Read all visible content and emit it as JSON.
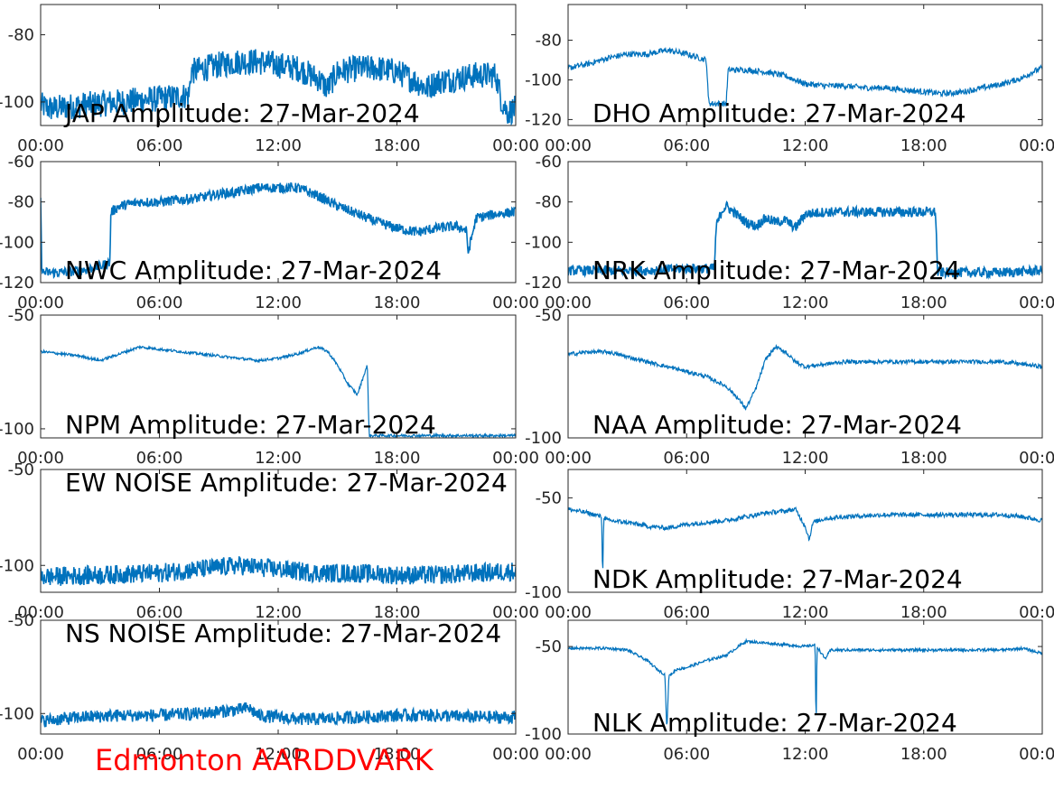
{
  "footer_label": "Edmonton AARDDVARK",
  "colors": {
    "series": "#0072bd",
    "footer": "#ff0000",
    "axis": "#262626"
  },
  "chart_data": [
    {
      "type": "line",
      "title": "JAP Amplitude: 27-Mar-2024",
      "xlabel": "",
      "ylabel": "",
      "x_ticks": [
        "00:00",
        "06:00",
        "12:00",
        "18:00",
        "00:00"
      ],
      "y_ticks": [
        -80,
        -100
      ],
      "ylim": [
        -107,
        -71
      ],
      "noise": 4,
      "series": [
        {
          "x": [
            0,
            0.5,
            2,
            4,
            6,
            7.5,
            7.6,
            9,
            10,
            11,
            12,
            13,
            14,
            14.5,
            15,
            16,
            17,
            18,
            19,
            19.5,
            20,
            21,
            22,
            22.5,
            23,
            23.3,
            23.6,
            24
          ],
          "y": [
            -101,
            -102,
            -101,
            -100,
            -99,
            -98,
            -91,
            -89,
            -88,
            -88,
            -89,
            -90,
            -93,
            -96,
            -91,
            -90,
            -90,
            -91,
            -94,
            -96,
            -94,
            -93,
            -92,
            -92,
            -92,
            -100,
            -103,
            -102
          ]
        }
      ]
    },
    {
      "type": "line",
      "title": "DHO Amplitude: 27-Mar-2024",
      "xlabel": "",
      "ylabel": "",
      "x_ticks": [
        "00:00",
        "06:00",
        "12:00",
        "18:00",
        "00:00"
      ],
      "y_ticks": [
        -80,
        -100,
        -120
      ],
      "ylim": [
        -123,
        -62
      ],
      "noise": 1.5,
      "series": [
        {
          "x": [
            0,
            1,
            2,
            3,
            4,
            5,
            6,
            7,
            7.1,
            7.2,
            8,
            8.1,
            9,
            10,
            11,
            12,
            13,
            14,
            15,
            16,
            17,
            18,
            19,
            20,
            21,
            22,
            23,
            23.5,
            24
          ],
          "y": [
            -94,
            -92,
            -89,
            -87,
            -87,
            -85,
            -87,
            -90,
            -110,
            -112,
            -112,
            -95,
            -95,
            -96,
            -98,
            -102,
            -103,
            -103,
            -104,
            -104,
            -105,
            -106,
            -107,
            -106,
            -104,
            -102,
            -99,
            -96,
            -94
          ]
        }
      ]
    },
    {
      "type": "line",
      "title": "NWC Amplitude: 27-Mar-2024",
      "xlabel": "",
      "ylabel": "",
      "x_ticks": [
        "00:00",
        "06:00",
        "12:00",
        "18:00",
        "00:00"
      ],
      "y_ticks": [
        -60,
        -80,
        -100,
        -120
      ],
      "ylim": [
        -120,
        -60
      ],
      "noise": 2.5,
      "series": [
        {
          "x": [
            0,
            0.05,
            0.1,
            1,
            2,
            3,
            3.5,
            3.55,
            4,
            5,
            6,
            7,
            8,
            9,
            10,
            11,
            12,
            13,
            14,
            15,
            16,
            17,
            18,
            19,
            20,
            21,
            21.5,
            21.6,
            22,
            23,
            24
          ],
          "y": [
            -80,
            -110,
            -115,
            -115,
            -114,
            -112,
            -110,
            -85,
            -82,
            -80,
            -80,
            -79,
            -78,
            -76,
            -75,
            -73,
            -73,
            -73,
            -77,
            -82,
            -86,
            -90,
            -93,
            -95,
            -93,
            -92,
            -94,
            -105,
            -88,
            -86,
            -85
          ]
        }
      ]
    },
    {
      "type": "line",
      "title": "NRK Amplitude: 27-Mar-2024",
      "xlabel": "",
      "ylabel": "",
      "x_ticks": [
        "00:00",
        "06:00",
        "12:00",
        "18:00",
        "00:00"
      ],
      "y_ticks": [
        -60,
        -80,
        -100,
        -120
      ],
      "ylim": [
        -120,
        -60
      ],
      "noise": 2.5,
      "series": [
        {
          "x": [
            0,
            2,
            4,
            6,
            7.4,
            7.5,
            7.8,
            8,
            8.5,
            9,
            9.5,
            10,
            10.5,
            11,
            11.5,
            12,
            13,
            14,
            15,
            16,
            17,
            18,
            18.6,
            18.7,
            20,
            22,
            24
          ],
          "y": [
            -114,
            -114,
            -114,
            -113,
            -113,
            -92,
            -84,
            -82,
            -86,
            -90,
            -92,
            -88,
            -90,
            -89,
            -93,
            -86,
            -85,
            -85,
            -85,
            -85,
            -85,
            -85,
            -85,
            -115,
            -115,
            -115,
            -114
          ]
        }
      ]
    },
    {
      "type": "line",
      "title": "NPM Amplitude: 27-Mar-2024",
      "xlabel": "",
      "ylabel": "",
      "x_ticks": [
        "00:00",
        "06:00",
        "12:00",
        "18:00",
        "00:00"
      ],
      "y_ticks": [
        -50,
        -100
      ],
      "ylim": [
        -104,
        -50
      ],
      "noise": 0.6,
      "series": [
        {
          "x": [
            0,
            1,
            2,
            3,
            4,
            5,
            6,
            7,
            8,
            9,
            10,
            11,
            12,
            13,
            14,
            14.5,
            15,
            15.5,
            16,
            16.5,
            16.6,
            17,
            18,
            20,
            22,
            24
          ],
          "y": [
            -66,
            -67,
            -68,
            -70,
            -67,
            -64,
            -65,
            -66,
            -67,
            -68,
            -69,
            -70,
            -69,
            -67,
            -64,
            -66,
            -72,
            -80,
            -85,
            -72,
            -103,
            -103,
            -103,
            -103,
            -103,
            -103
          ]
        }
      ]
    },
    {
      "type": "line",
      "title": "NAA Amplitude: 27-Mar-2024",
      "xlabel": "",
      "ylabel": "",
      "x_ticks": [
        "00:00",
        "06:00",
        "12:00",
        "18:00",
        "00:00"
      ],
      "y_ticks": [
        -50,
        -100
      ],
      "ylim": [
        -100,
        -50
      ],
      "noise": 0.8,
      "series": [
        {
          "x": [
            0,
            1,
            2,
            3,
            4,
            5,
            6,
            7,
            8,
            8.5,
            9,
            9.5,
            10,
            10.5,
            11,
            11.5,
            12,
            13,
            14,
            16,
            18,
            20,
            22,
            23,
            24
          ],
          "y": [
            -66,
            -65,
            -65,
            -67,
            -69,
            -71,
            -73,
            -75,
            -79,
            -83,
            -88,
            -80,
            -68,
            -63,
            -65,
            -69,
            -71,
            -70,
            -69,
            -69,
            -69,
            -69,
            -69,
            -70,
            -71
          ]
        }
      ]
    },
    {
      "type": "line",
      "title": "EW NOISE Amplitude: 27-Mar-2024",
      "xlabel": "",
      "ylabel": "",
      "x_ticks": [
        "00:00",
        "06:00",
        "12:00",
        "18:00",
        "00:00"
      ],
      "y_ticks": [
        -50,
        -100
      ],
      "ylim": [
        -114,
        -50
      ],
      "noise": 5,
      "series": [
        {
          "x": [
            0,
            3,
            6,
            8,
            10,
            11,
            12,
            14,
            16,
            18,
            20,
            22,
            24
          ],
          "y": [
            -106,
            -105,
            -104,
            -102,
            -100,
            -101,
            -102,
            -104,
            -104,
            -105,
            -105,
            -104,
            -103
          ]
        }
      ]
    },
    {
      "type": "line",
      "title": "NDK Amplitude: 27-Mar-2024",
      "xlabel": "",
      "ylabel": "",
      "x_ticks": [
        "00:00",
        "06:00",
        "12:00",
        "18:00",
        "00:00"
      ],
      "y_ticks": [
        -50,
        -100
      ],
      "ylim": [
        -100,
        -35
      ],
      "noise": 1.2,
      "series": [
        {
          "x": [
            0,
            1,
            1.7,
            1.75,
            1.8,
            2,
            3,
            4,
            5,
            6,
            7,
            8,
            9,
            10,
            11,
            11.5,
            12,
            12.2,
            12.4,
            13,
            14,
            16,
            18,
            20,
            22,
            23,
            24
          ],
          "y": [
            -56,
            -58,
            -60,
            -95,
            -60,
            -62,
            -63,
            -65,
            -66,
            -64,
            -63,
            -62,
            -60,
            -58,
            -57,
            -56,
            -65,
            -72,
            -63,
            -61,
            -60,
            -59,
            -59,
            -59,
            -59,
            -60,
            -62
          ]
        }
      ]
    },
    {
      "type": "line",
      "title": "NS NOISE Amplitude: 27-Mar-2024",
      "xlabel": "",
      "ylabel": "",
      "x_ticks": [
        "00:00",
        "06:00",
        "12:00",
        "18:00",
        "00:00"
      ],
      "y_ticks": [
        -50,
        -100
      ],
      "ylim": [
        -111,
        -50
      ],
      "noise": 3.5,
      "series": [
        {
          "x": [
            0,
            2,
            4,
            6,
            8,
            10,
            10.5,
            11,
            12,
            13,
            14,
            16,
            18,
            20,
            22,
            24
          ],
          "y": [
            -104,
            -102,
            -101,
            -101,
            -100,
            -98,
            -97,
            -101,
            -102,
            -103,
            -103,
            -102,
            -101,
            -101,
            -102,
            -102
          ]
        }
      ]
    },
    {
      "type": "line",
      "title": "NLK Amplitude: 27-Mar-2024",
      "xlabel": "",
      "ylabel": "",
      "x_ticks": [
        "00:00",
        "06:00",
        "12:00",
        "18:00",
        "00:00"
      ],
      "y_ticks": [
        -50,
        -100
      ],
      "ylim": [
        -100,
        -35
      ],
      "noise": 0.8,
      "series": [
        {
          "x": [
            0,
            1,
            2,
            3,
            4,
            4.5,
            4.9,
            5,
            5.1,
            5.5,
            6,
            7,
            8,
            9,
            10,
            11,
            12,
            12.5,
            12.55,
            12.6,
            13,
            13.3,
            14,
            16,
            18,
            20,
            22,
            23,
            24
          ],
          "y": [
            -51,
            -51,
            -51,
            -52,
            -58,
            -63,
            -66,
            -98,
            -67,
            -63,
            -62,
            -58,
            -55,
            -47,
            -48,
            -49,
            -50,
            -49,
            -98,
            -50,
            -57,
            -52,
            -52,
            -52,
            -52,
            -52,
            -52,
            -51,
            -54
          ]
        }
      ]
    }
  ]
}
